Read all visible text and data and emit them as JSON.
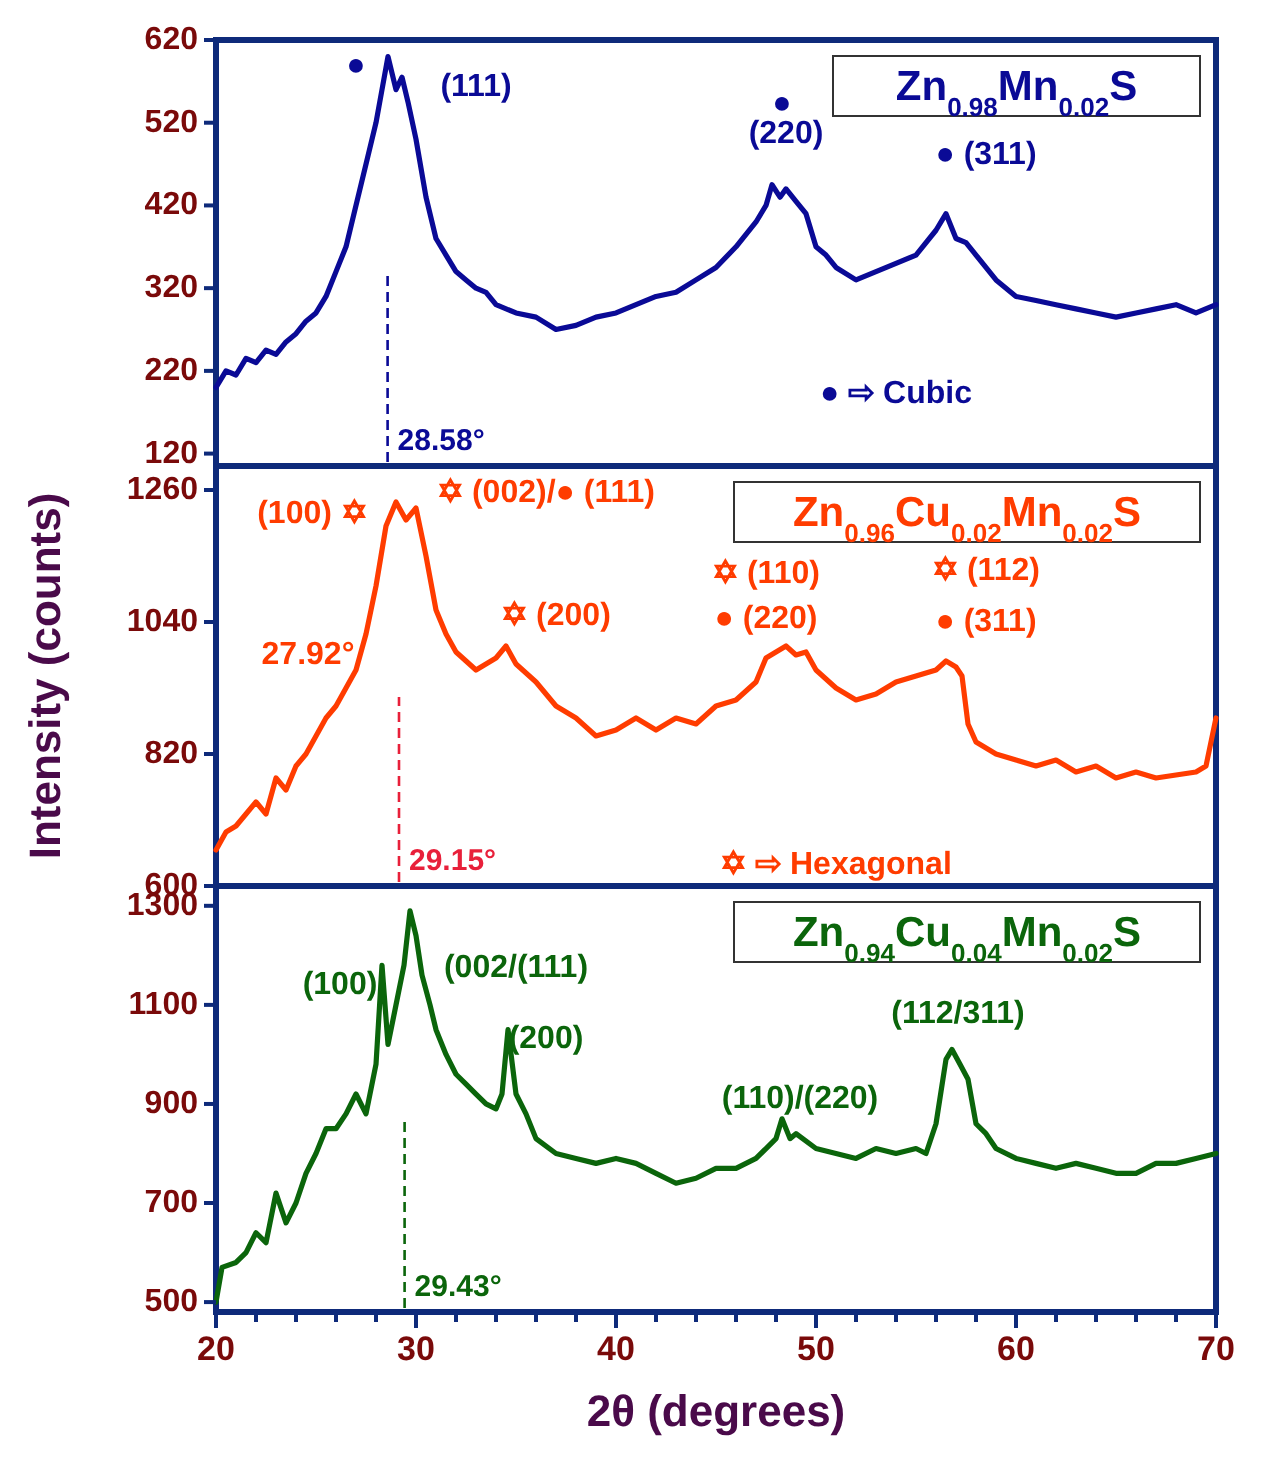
{
  "chart_data": [
    {
      "type": "line",
      "title": "Zn$_{0.98}$Mn$_{0.02}$S",
      "xlim": [
        20,
        70
      ],
      "xticks": [
        20,
        30,
        40,
        50,
        60,
        70
      ],
      "ylim": [
        105,
        620
      ],
      "yticks": [
        120,
        220,
        320,
        420,
        520,
        620
      ],
      "tick_labels": "y",
      "series": [
        {
          "color": "#0a0a96",
          "x": [
            20,
            20.5,
            21,
            21.5,
            22,
            22.5,
            23,
            23.5,
            24,
            24.5,
            25,
            25.5,
            26,
            26.5,
            27,
            27.5,
            28,
            28.3,
            28.6,
            29,
            29.3,
            29.6,
            30,
            30.5,
            31,
            31.5,
            32,
            32.5,
            33,
            33.5,
            34,
            35,
            36,
            37,
            38,
            39,
            40,
            41,
            42,
            43,
            44,
            45,
            46,
            47,
            47.5,
            47.8,
            48.2,
            48.5,
            49,
            49.5,
            50,
            50.5,
            51,
            52,
            53,
            54,
            55,
            56,
            56.5,
            57,
            57.5,
            58,
            59,
            60,
            61,
            62,
            63,
            64,
            65,
            66,
            67,
            68,
            69,
            70
          ],
          "values": [
            200,
            220,
            215,
            235,
            230,
            245,
            240,
            255,
            265,
            280,
            290,
            310,
            340,
            370,
            420,
            470,
            520,
            560,
            600,
            560,
            575,
            545,
            500,
            430,
            380,
            360,
            340,
            330,
            320,
            315,
            300,
            290,
            285,
            270,
            275,
            285,
            290,
            300,
            310,
            315,
            330,
            345,
            370,
            400,
            420,
            445,
            430,
            440,
            425,
            410,
            370,
            360,
            345,
            330,
            340,
            350,
            360,
            390,
            410,
            380,
            375,
            360,
            330,
            310,
            305,
            300,
            295,
            290,
            285,
            290,
            295,
            300,
            290,
            300
          ]
        }
      ],
      "annotations": [
        "●",
        "(111)",
        "●",
        "(220)",
        "● (311)",
        "● ⇨ Cubic"
      ],
      "ref_lines": [
        {
          "axis": "x",
          "value": 28.58,
          "label": "28.58°",
          "color": "#0a0a96",
          "line_style": "dashed"
        }
      ]
    },
    {
      "type": "line",
      "title": "Zn$_{0.96}$Cu$_{0.02}$Mn$_{0.02}$S",
      "ylabel": "Intensity (counts)",
      "xlim": [
        20,
        70
      ],
      "xticks": [
        20,
        30,
        40,
        50,
        60,
        70
      ],
      "ylim": [
        600,
        1300
      ],
      "yticks": [
        600,
        820,
        1040,
        1260
      ],
      "tick_labels": "y",
      "series": [
        {
          "color": "#ff3c00",
          "x": [
            20,
            20.5,
            21,
            21.5,
            22,
            22.5,
            23,
            23.5,
            24,
            24.5,
            25,
            25.5,
            26,
            26.5,
            27,
            27.5,
            28,
            28.5,
            29,
            29.5,
            30,
            30.5,
            31,
            31.5,
            32,
            33,
            34,
            34.5,
            35,
            36,
            37,
            38,
            39,
            40,
            41,
            42,
            43,
            44,
            45,
            46,
            47,
            47.5,
            48,
            48.5,
            49,
            49.5,
            50,
            51,
            52,
            53,
            54,
            55,
            56,
            56.5,
            57,
            57.3,
            57.6,
            58,
            59,
            60,
            61,
            62,
            63,
            64,
            65,
            66,
            67,
            68,
            69,
            69.5,
            70
          ],
          "values": [
            660,
            690,
            700,
            720,
            740,
            720,
            780,
            760,
            800,
            820,
            850,
            880,
            900,
            930,
            960,
            1020,
            1100,
            1200,
            1240,
            1210,
            1230,
            1150,
            1060,
            1020,
            990,
            960,
            980,
            1000,
            970,
            940,
            900,
            880,
            850,
            860,
            880,
            860,
            880,
            870,
            900,
            910,
            940,
            980,
            990,
            1000,
            985,
            990,
            960,
            930,
            910,
            920,
            940,
            950,
            960,
            975,
            965,
            950,
            870,
            840,
            820,
            810,
            800,
            810,
            790,
            800,
            780,
            790,
            780,
            785,
            790,
            800,
            880
          ]
        }
      ],
      "annotations": [
        "(100) ✡",
        "✡ (002)/● (111)",
        "27.92°",
        "✡ (200)",
        "✡ (110)",
        "● (220)",
        "✡ (112)",
        "● (311)",
        "✡ ⇨ Hexagonal"
      ],
      "ref_lines": [
        {
          "axis": "x",
          "value": 29.15,
          "label": "29.15°",
          "color": "#e8203a",
          "line_style": "dashed"
        }
      ]
    },
    {
      "type": "line",
      "title": "Zn$_{0.94}$Cu$_{0.04}$Mn$_{0.02}$S",
      "xlabel": "2θ (degrees)",
      "xlim": [
        20,
        70
      ],
      "xticks": [
        20,
        {
          "value": 22,
          "label": null
        },
        {
          "value": 24,
          "label": null
        },
        {
          "value": 26,
          "label": null
        },
        {
          "value": 28,
          "label": null
        },
        30,
        {
          "value": 32,
          "label": null
        },
        {
          "value": 34,
          "label": null
        },
        {
          "value": 36,
          "label": null
        },
        {
          "value": 38,
          "label": null
        },
        40,
        {
          "value": 42,
          "label": null
        },
        {
          "value": 44,
          "label": null
        },
        {
          "value": 46,
          "label": null
        },
        {
          "value": 48,
          "label": null
        },
        50,
        {
          "value": 52,
          "label": null
        },
        {
          "value": 54,
          "label": null
        },
        {
          "value": 56,
          "label": null
        },
        {
          "value": 58,
          "label": null
        },
        60,
        {
          "value": 62,
          "label": null
        },
        {
          "value": 64,
          "label": null
        },
        {
          "value": 66,
          "label": null
        },
        {
          "value": 68,
          "label": null
        },
        70
      ],
      "ylim": [
        480,
        1340
      ],
      "yticks": [
        500,
        700,
        900,
        1100,
        1300
      ],
      "series": [
        {
          "color": "#0b650b",
          "x": [
            20,
            20.3,
            21,
            21.5,
            22,
            22.5,
            23,
            23.5,
            24,
            24.5,
            25,
            25.5,
            26,
            26.5,
            27,
            27.5,
            28,
            28.3,
            28.6,
            29,
            29.4,
            29.7,
            30,
            30.3,
            30.7,
            31,
            31.5,
            32,
            32.5,
            33,
            33.5,
            34,
            34.3,
            34.6,
            35,
            35.5,
            36,
            37,
            38,
            39,
            40,
            41,
            42,
            43,
            44,
            45,
            46,
            47,
            47.5,
            48,
            48.3,
            48.7,
            49,
            50,
            51,
            52,
            53,
            54,
            55,
            55.5,
            56,
            56.5,
            56.8,
            57.2,
            57.6,
            58,
            58.5,
            59,
            60,
            61,
            62,
            63,
            64,
            65,
            66,
            67,
            68,
            69,
            70
          ],
          "values": [
            500,
            570,
            580,
            600,
            640,
            620,
            720,
            660,
            700,
            760,
            800,
            850,
            850,
            880,
            920,
            880,
            980,
            1180,
            1020,
            1100,
            1180,
            1290,
            1240,
            1160,
            1100,
            1050,
            1000,
            960,
            940,
            920,
            900,
            890,
            920,
            1050,
            920,
            880,
            830,
            800,
            790,
            780,
            790,
            780,
            760,
            740,
            750,
            770,
            770,
            790,
            810,
            830,
            870,
            830,
            840,
            810,
            800,
            790,
            810,
            800,
            810,
            800,
            860,
            990,
            1010,
            980,
            950,
            860,
            840,
            810,
            790,
            780,
            770,
            780,
            770,
            760,
            760,
            780,
            780,
            790,
            800
          ]
        }
      ],
      "annotations": [
        "(100)",
        "(002/(111)",
        "(200)",
        "(110)/(220)",
        "(112/311)"
      ],
      "ref_lines": [
        {
          "axis": "x",
          "value": 29.43,
          "label": "29.43°",
          "color": "#0b650b",
          "line_style": "dashed"
        }
      ]
    }
  ]
}
